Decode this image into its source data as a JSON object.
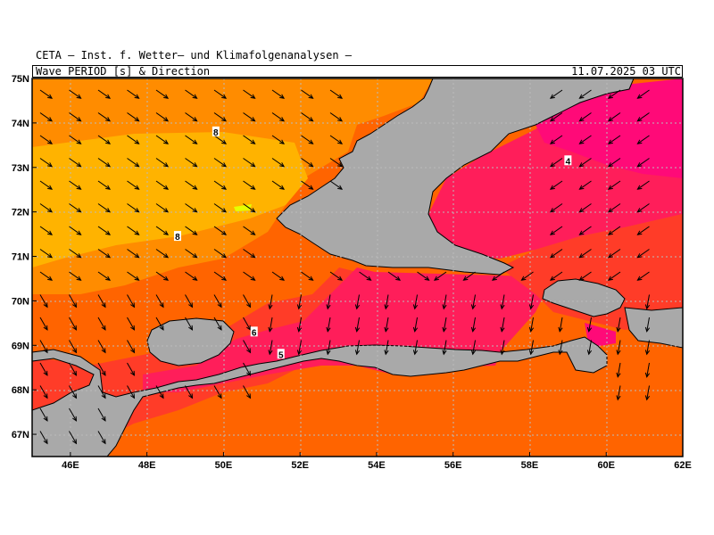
{
  "header": {
    "institute": "CETA — Inst. f. Wetter— und Klimafolgenanalysen —",
    "variable": "Wave_PERIOD_[s]_&_Direction",
    "timestamp": "11.07.2025 03 UTC"
  },
  "axes": {
    "lat_labels": [
      "75N",
      "74N",
      "73N",
      "72N",
      "71N",
      "70N",
      "69N",
      "68N",
      "67N"
    ],
    "lon_labels": [
      "46E",
      "48E",
      "50E",
      "52E",
      "54E",
      "56E",
      "58E",
      "60E",
      "62E"
    ],
    "lat_range": [
      66.5,
      75.0
    ],
    "lon_range": [
      45.0,
      62.0
    ]
  },
  "contour_labels": [
    {
      "text": "8",
      "lon": 49.8,
      "lat": 73.8
    },
    {
      "text": "8",
      "lon": 48.8,
      "lat": 71.45
    },
    {
      "text": "4",
      "lon": 59.0,
      "lat": 73.15
    },
    {
      "text": "6",
      "lon": 50.8,
      "lat": 69.3
    },
    {
      "text": "5",
      "lon": 51.5,
      "lat": 68.8
    }
  ],
  "colors": {
    "land": "#a9a9a9",
    "period_8_9": "#ffb300",
    "period_7_8": "#ff8c00",
    "period_6_7": "#ff6400",
    "period_5_6": "#ff3c28",
    "period_4_5": "#ff1e5a",
    "period_3_4": "#ff0a78",
    "period_9_10": "#e6ff00",
    "grid": "#bbbbbb"
  }
}
